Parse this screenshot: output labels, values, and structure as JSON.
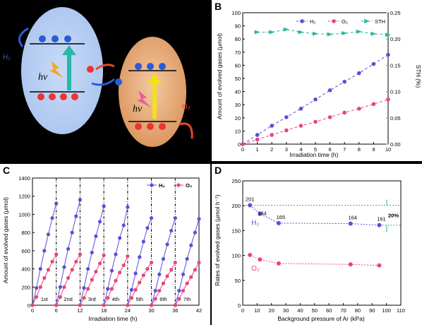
{
  "panel_a": {
    "hv_left": "hv",
    "hv_right": "hv",
    "h2_label": "H₂",
    "o2_label": "O₂",
    "colors": {
      "left_particle": "#a9c4ee",
      "right_particle": "#d9935c",
      "arrow": "#e8492c"
    }
  },
  "chart_data": [
    {
      "id": "B",
      "type": "line",
      "panel_letter": "B",
      "xlabel": "Irradiation time (h)",
      "ylabel": "Amount of evolved gases (μmol)",
      "y2label": "STH (%)",
      "xlim": [
        0,
        10
      ],
      "ylim": [
        0,
        100
      ],
      "y2lim": [
        0,
        0.25
      ],
      "xticks": [
        "0",
        "1",
        "2",
        "3",
        "4",
        "5",
        "6",
        "7",
        "8",
        "9",
        "10"
      ],
      "yticks": [
        "0",
        "10",
        "20",
        "30",
        "40",
        "50",
        "60",
        "70",
        "80",
        "90",
        "100"
      ],
      "y2ticks": [
        "0.00",
        "0.05",
        "0.10",
        "0.15",
        "0.20",
        "0.25"
      ],
      "legend_position": "top",
      "series": [
        {
          "name": "H₂",
          "color": "#5b4fd6",
          "axis": "left",
          "x": [
            0,
            1,
            2,
            3,
            4,
            5,
            6,
            7,
            8,
            9,
            10
          ],
          "y": [
            0,
            7,
            14,
            20.5,
            27,
            34,
            41,
            47.5,
            54,
            61,
            68
          ]
        },
        {
          "name": "O₂",
          "color": "#e8457a",
          "axis": "left",
          "x": [
            0,
            1,
            2,
            3,
            4,
            5,
            6,
            7,
            8,
            9,
            10
          ],
          "y": [
            0,
            3.5,
            7,
            10.5,
            14,
            17,
            20.5,
            24,
            27,
            30.5,
            34
          ]
        },
        {
          "name": "STH",
          "color": "#2bb5a0",
          "axis": "right",
          "x": [
            1,
            2,
            3,
            4,
            5,
            6,
            7,
            8,
            9,
            10
          ],
          "y": [
            0.213,
            0.213,
            0.218,
            0.213,
            0.21,
            0.209,
            0.211,
            0.214,
            0.21,
            0.208
          ]
        }
      ]
    },
    {
      "id": "C",
      "type": "line",
      "panel_letter": "C",
      "xlabel": "Irradiation time (h)",
      "ylabel": "Amount of evolved gases (μmol)",
      "xlim": [
        0,
        42
      ],
      "ylim": [
        0,
        1400
      ],
      "xticks": [
        "0",
        "6",
        "12",
        "18",
        "24",
        "30",
        "36",
        "42"
      ],
      "yticks": [
        "0",
        "200",
        "400",
        "600",
        "800",
        "1000",
        "1200",
        "1400"
      ],
      "cycle_labels": [
        "1st",
        "2nd",
        "3rd",
        "4th",
        "5th",
        "6th",
        "7th"
      ],
      "legend_position": "top-right",
      "series": [
        {
          "name": "H₂",
          "color": "#5b4fd6",
          "cycle_values": [
            [
              0,
              190,
              400,
              600,
              780,
              960,
              1120
            ],
            [
              0,
              200,
              420,
              620,
              800,
              980,
              1160
            ],
            [
              0,
              190,
              400,
              580,
              760,
              920,
              1090
            ],
            [
              0,
              180,
              380,
              560,
              740,
              880,
              1080
            ],
            [
              0,
              170,
              350,
              530,
              700,
              850,
              960
            ],
            [
              0,
              160,
              340,
              510,
              670,
              820,
              960
            ],
            [
              0,
              160,
              340,
              510,
              660,
              800,
              950
            ]
          ]
        },
        {
          "name": "O₂",
          "color": "#e8457a",
          "cycle_values": [
            [
              0,
              90,
              200,
              300,
              390,
              480,
              560
            ],
            [
              0,
              90,
              200,
              300,
              390,
              480,
              560
            ],
            [
              0,
              80,
              180,
              280,
              370,
              460,
              550
            ],
            [
              0,
              80,
              180,
              270,
              360,
              440,
              540
            ],
            [
              0,
              80,
              170,
              250,
              330,
              400,
              470
            ],
            [
              0,
              70,
              160,
              240,
              320,
              390,
              470
            ],
            [
              0,
              70,
              160,
              240,
              310,
              390,
              470
            ]
          ]
        }
      ]
    },
    {
      "id": "D",
      "type": "scatter",
      "panel_letter": "D",
      "xlabel": "Background pressure of Ar (kPa)",
      "ylabel": "Rates of evolved gases (μmol h⁻¹)",
      "xlim": [
        0,
        110
      ],
      "ylim": [
        0,
        250
      ],
      "xticks": [
        "0",
        "10",
        "20",
        "30",
        "40",
        "50",
        "60",
        "70",
        "80",
        "90",
        "100",
        "110"
      ],
      "yticks": [
        "0",
        "50",
        "100",
        "150",
        "200",
        "250"
      ],
      "percent_annotation": "20%",
      "series": [
        {
          "name": "H₂",
          "color": "#5b4fd6",
          "x": [
            5,
            12,
            25,
            75,
            95
          ],
          "y": [
            201,
            184,
            165,
            164,
            161
          ],
          "labels": [
            "201",
            "184",
            "165",
            "164",
            "161"
          ]
        },
        {
          "name": "O₂",
          "color": "#e8457a",
          "x": [
            5,
            12,
            25,
            75,
            95
          ],
          "y": [
            101,
            92,
            84,
            82,
            80
          ]
        }
      ]
    }
  ]
}
